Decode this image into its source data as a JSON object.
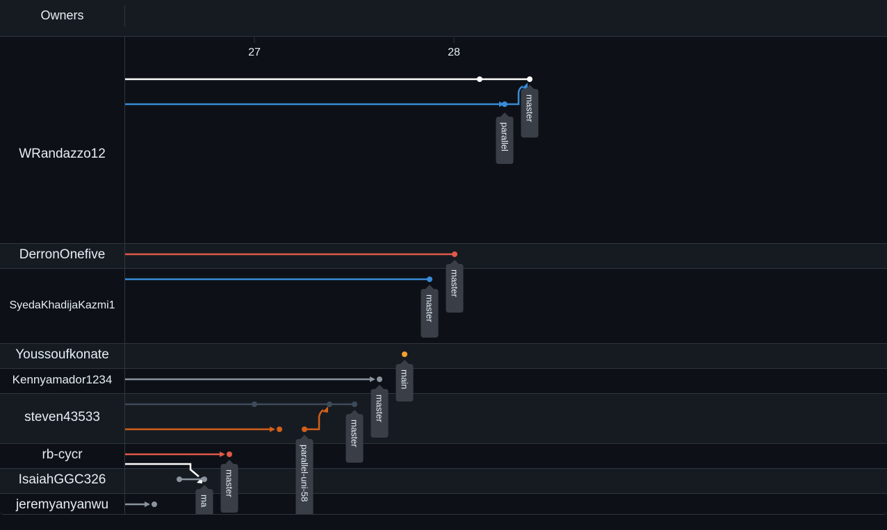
{
  "header": {
    "owners_label": "Owners"
  },
  "dates": [
    "27",
    "28"
  ],
  "owners": [
    {
      "name": "WRandazzo12"
    },
    {
      "name": "DerronOnefive"
    },
    {
      "name": "SyedaKhadijaKazmi1"
    },
    {
      "name": "Youssoufkonate"
    },
    {
      "name": "Kennyamador1234"
    },
    {
      "name": "steven43533"
    },
    {
      "name": "rb-cycr"
    },
    {
      "name": "IsaiahGGC326"
    },
    {
      "name": "jeremyanyanwu"
    }
  ],
  "colors": {
    "white": "#ffffff",
    "blue": "#388bd6",
    "red": "#e05a48",
    "orange": "#f2a22e",
    "gray": "#8b949e",
    "slate": "#3d4b5a",
    "burnt": "#d2601a",
    "tag_bg": "#3a3f47"
  },
  "branches": [
    {
      "owner": "WRandazzo12",
      "name": "master",
      "color": "white"
    },
    {
      "owner": "WRandazzo12",
      "name": "parallel",
      "color": "blue"
    },
    {
      "owner": "DerronOnefive",
      "name": "master",
      "color": "red"
    },
    {
      "owner": "SyedaKhadijaKazmi1",
      "name": "master",
      "color": "blue"
    },
    {
      "owner": "Youssoufkonate",
      "name": "main",
      "color": "orange"
    },
    {
      "owner": "Kennyamador1234",
      "name": "master",
      "color": "gray"
    },
    {
      "owner": "steven43533",
      "name": "master",
      "color": "slate"
    },
    {
      "owner": "steven43533",
      "name": "parallel-uni-58",
      "color": "burnt"
    },
    {
      "owner": "rb-cycr",
      "name": "master",
      "color": "red"
    },
    {
      "owner": "IsaiahGGC326",
      "name": "ma",
      "color": "gray"
    }
  ]
}
